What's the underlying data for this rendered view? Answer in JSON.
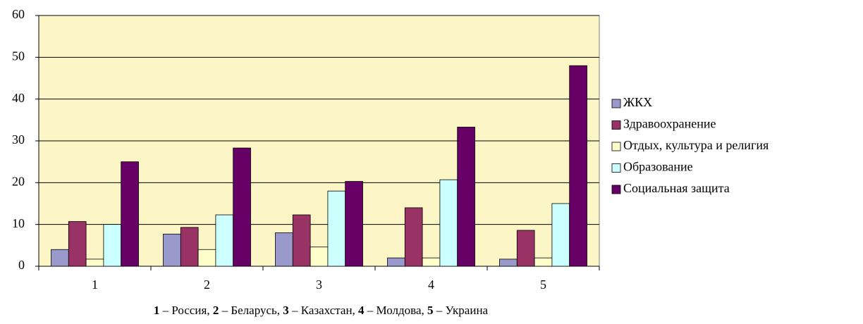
{
  "chart_data": {
    "type": "bar",
    "categories": [
      "1",
      "2",
      "3",
      "4",
      "5"
    ],
    "series": [
      {
        "name": "ЖКХ",
        "color": "#9999cc",
        "values": [
          4.0,
          7.7,
          8.0,
          2.0,
          1.7
        ]
      },
      {
        "name": "Здравоохранение",
        "color": "#993366",
        "values": [
          10.7,
          9.3,
          12.3,
          14.0,
          8.6
        ]
      },
      {
        "name": "Отдых, культура и религия",
        "color": "#ffffcc",
        "values": [
          1.7,
          4.0,
          4.6,
          2.0,
          2.0
        ]
      },
      {
        "name": "Образование",
        "color": "#ccffff",
        "values": [
          10.0,
          12.3,
          18.0,
          20.7,
          15.0
        ]
      },
      {
        "name": "Социальная защита",
        "color": "#660066",
        "values": [
          25.0,
          28.3,
          20.3,
          33.3,
          48.0
        ]
      }
    ],
    "ylim": [
      0,
      60
    ],
    "yticks": [
      0,
      10,
      20,
      30,
      40,
      50,
      60
    ],
    "grid": true,
    "legend": "right",
    "caption": [
      {
        "key": "1",
        "text": " – Россия, "
      },
      {
        "key": "2",
        "text": " – Беларусь, "
      },
      {
        "key": "3",
        "text": " – Казахстан, "
      },
      {
        "key": "4",
        "text": " – Молдова, "
      },
      {
        "key": "5",
        "text": " – Украина"
      }
    ]
  }
}
